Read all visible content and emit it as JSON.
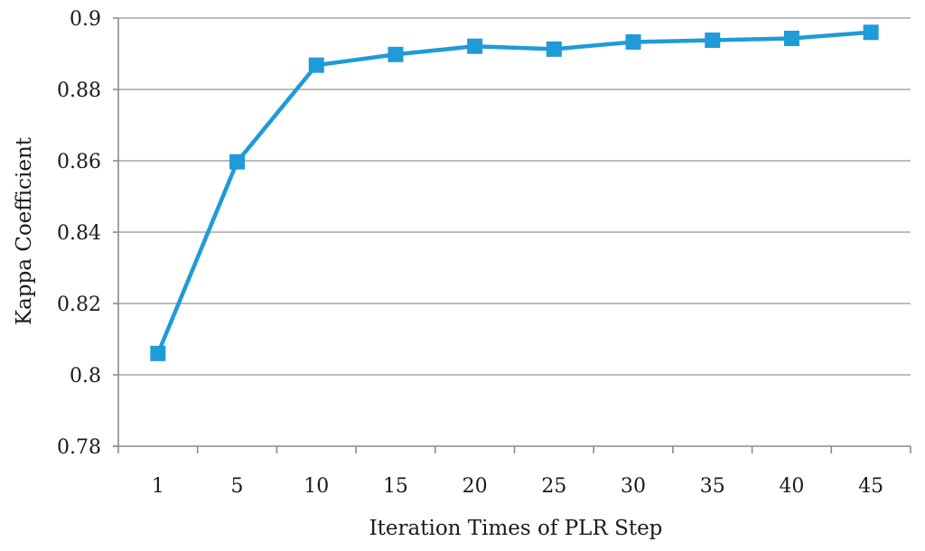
{
  "chart_data": {
    "type": "line",
    "title": "",
    "xlabel": "Iteration Times of PLR Step",
    "ylabel": "Kappa Coefficient",
    "categories": [
      "1",
      "5",
      "10",
      "15",
      "20",
      "25",
      "30",
      "35",
      "40",
      "45"
    ],
    "series": [
      {
        "values": [
          0.806,
          0.8597,
          0.8868,
          0.8898,
          0.8921,
          0.8913,
          0.8933,
          0.8938,
          0.8943,
          0.896
        ],
        "color": "#1f9bd7",
        "marker": "square"
      }
    ],
    "ylim": [
      0.78,
      0.9
    ],
    "yticks": [
      "0.78",
      "0.8",
      "0.82",
      "0.84",
      "0.86",
      "0.88",
      "0.9"
    ],
    "grid": true,
    "legend": "none"
  }
}
